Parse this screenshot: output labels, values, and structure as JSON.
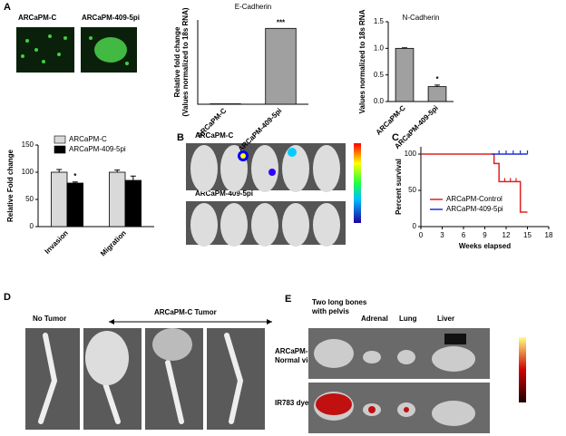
{
  "panels": {
    "a": "A",
    "b": "B",
    "c": "C",
    "d": "D",
    "e": "E"
  },
  "images": {
    "a_left": "ARCaPM-C",
    "a_right": "ARCaPM-409-5pi",
    "b_top": "ARCaPM-C",
    "b_bottom": "ARCaPM-409-5pi",
    "d_left": "No Tumor",
    "d_right": "ARCaPM-C Tumor",
    "e_cols": [
      "Two long bones",
      "with pelvis",
      "Adrenal",
      "Lung",
      "Liver"
    ],
    "e_row1": [
      "ARCaPM-C",
      "Normal view"
    ],
    "e_row2": "IR783 dye"
  },
  "chart_data": [
    {
      "type": "bar",
      "title": "E-Cadherin",
      "ylabel": [
        "Relative fold change",
        "(Values normalized to 18s RNA)"
      ],
      "categories": [
        "ARCaPM-C",
        "ARCaPM-409-5pi"
      ],
      "values": [
        1,
        180
      ],
      "color": "#a0a0a0",
      "ylim": [
        0,
        200
      ],
      "annotation": "***"
    },
    {
      "type": "bar",
      "title": "N-Cadherin",
      "ylabel": "Values normalized to 18s RNA",
      "categories": [
        "ARCaPM-C",
        "ARCaPM-409-5pi"
      ],
      "values": [
        1.0,
        0.28
      ],
      "errors": [
        0.01,
        0.03
      ],
      "color": "#a0a0a0",
      "ylim": [
        0,
        1.5
      ],
      "yticks": [
        {
          "value": 0,
          "label": "0.0"
        },
        0.5,
        {
          "value": 1,
          "label": "1.0"
        },
        1.5
      ],
      "annotation": "*"
    },
    {
      "type": "bar",
      "ylabel": "Relative Fold change",
      "categories": [
        "Invasion",
        "Migration"
      ],
      "series": [
        {
          "name": "ARCaPM-C",
          "color": "#d9d9d9",
          "values": [
            100,
            100
          ],
          "errors": [
            5,
            4
          ]
        },
        {
          "name": "ARCaPM-409-5pi",
          "color": "#000000",
          "values": [
            80,
            85
          ],
          "errors": [
            2,
            8
          ]
        }
      ],
      "ylim": [
        0,
        150
      ],
      "yticks": [
        0,
        50,
        100,
        150
      ],
      "annotation": "*",
      "legend": "top-left"
    },
    {
      "type": "line",
      "xlabel": "Weeks elapsed",
      "ylabel": "Percent survival",
      "series": [
        {
          "name": "ARCaPM-Control",
          "color": "#e02020",
          "x": [
            0,
            10.3,
            11,
            14,
            15
          ],
          "values": [
            100,
            87,
            62,
            20,
            20
          ],
          "censored": [
            11.8,
            12.6,
            13.4
          ]
        },
        {
          "name": "ARCaPM-409-5pi",
          "color": "#2030d0",
          "x": [
            10,
            15
          ],
          "values": [
            100,
            100
          ],
          "censored": [
            11,
            12,
            13,
            14,
            15
          ]
        }
      ],
      "xlim": [
        0,
        18
      ],
      "xticks": [
        0,
        3,
        6,
        9,
        12,
        15,
        18
      ],
      "ylim": [
        0,
        110
      ],
      "yticks": [
        0,
        50,
        100
      ],
      "legend": "bottom-left"
    }
  ]
}
